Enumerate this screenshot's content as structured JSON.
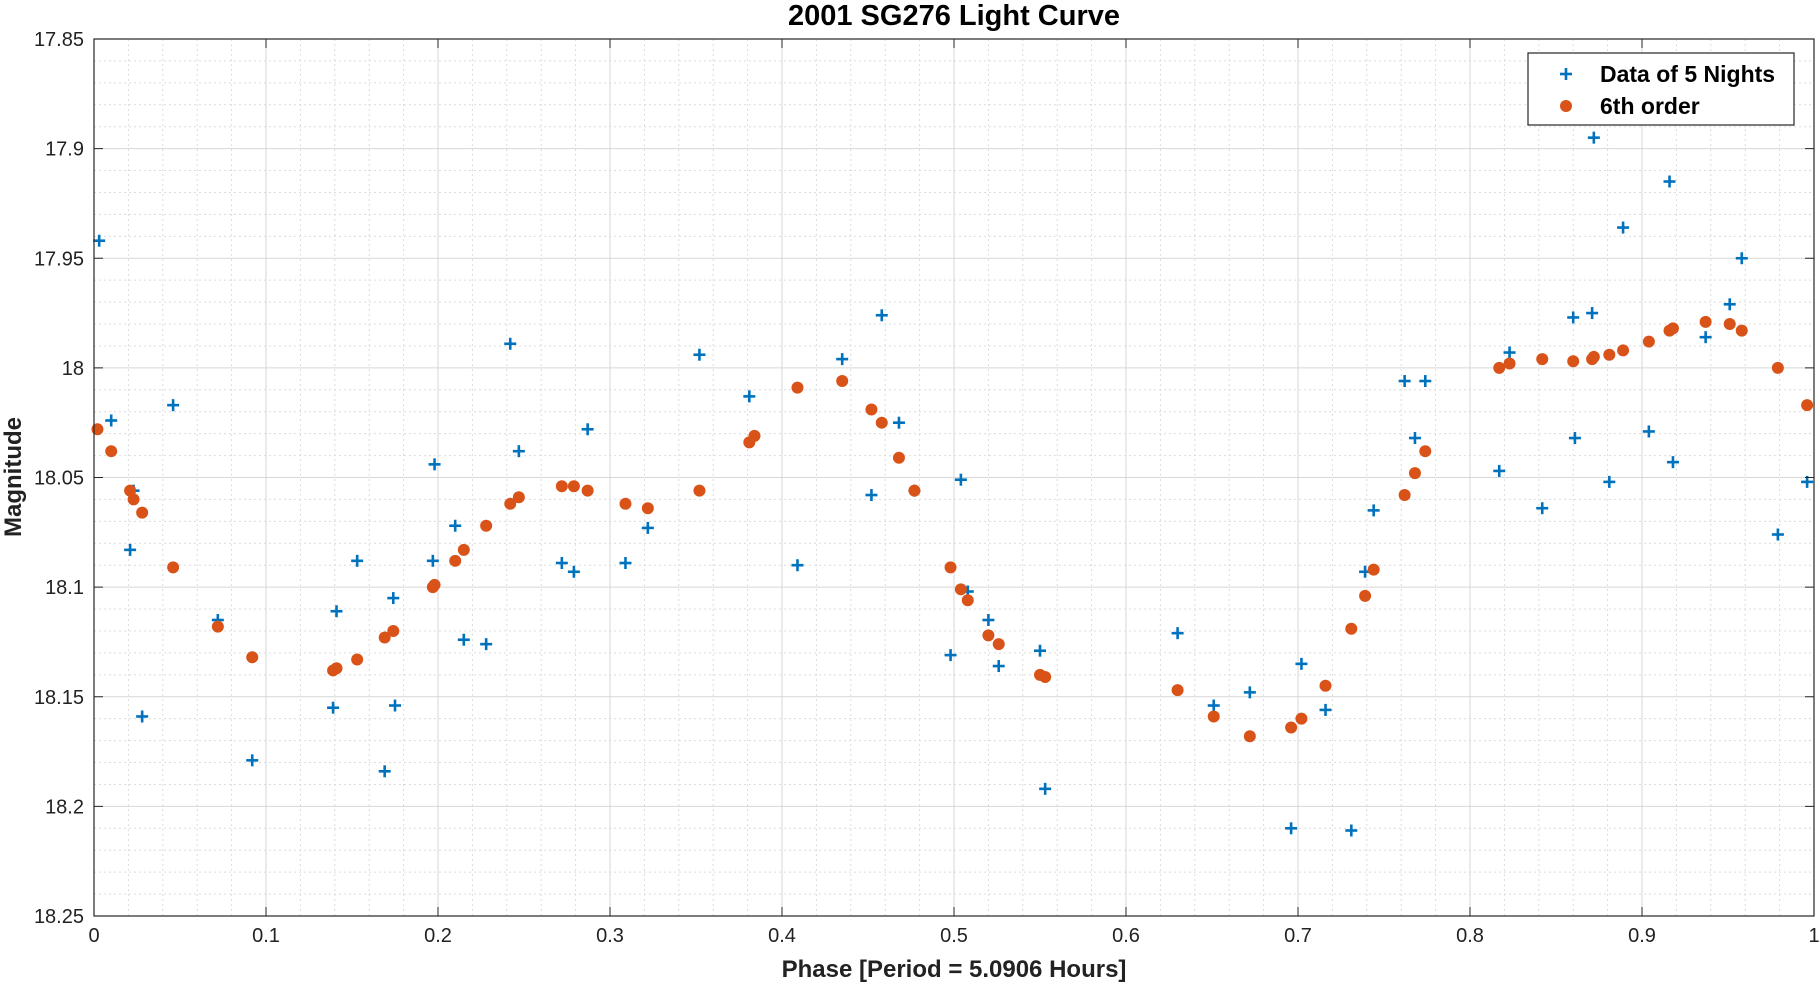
{
  "chart_data": {
    "type": "scatter",
    "title": "2001 SG276 Light Curve",
    "xlabel": "Phase [Period = 5.0906 Hours]",
    "ylabel": "Magnitude",
    "xlim": [
      0,
      1
    ],
    "ylim": [
      17.85,
      18.25
    ],
    "y_reversed": true,
    "xticks": [
      "0",
      "0.1",
      "0.2",
      "0.3",
      "0.4",
      "0.5",
      "0.6",
      "0.7",
      "0.8",
      "0.9",
      "1"
    ],
    "yticks": [
      "17.85",
      "17.9",
      "17.95",
      "18",
      "18.05",
      "18.1",
      "18.15",
      "18.2",
      "18.25"
    ],
    "grid": true,
    "minor_grid": true,
    "legend_position": "top-right",
    "series": [
      {
        "name": "Data of 5 Nights",
        "marker": "plus",
        "color": "#0072BD",
        "points": [
          [
            0.003,
            17.942
          ],
          [
            0.01,
            18.024
          ],
          [
            0.021,
            18.083
          ],
          [
            0.023,
            18.056
          ],
          [
            0.028,
            18.159
          ],
          [
            0.046,
            18.017
          ],
          [
            0.072,
            18.115
          ],
          [
            0.092,
            18.179
          ],
          [
            0.139,
            18.155
          ],
          [
            0.141,
            18.111
          ],
          [
            0.153,
            18.088
          ],
          [
            0.169,
            18.184
          ],
          [
            0.174,
            18.105
          ],
          [
            0.175,
            18.154
          ],
          [
            0.197,
            18.088
          ],
          [
            0.198,
            18.044
          ],
          [
            0.21,
            18.072
          ],
          [
            0.215,
            18.124
          ],
          [
            0.228,
            18.126
          ],
          [
            0.242,
            17.989
          ],
          [
            0.247,
            18.038
          ],
          [
            0.272,
            18.089
          ],
          [
            0.279,
            18.093
          ],
          [
            0.287,
            18.028
          ],
          [
            0.309,
            18.089
          ],
          [
            0.322,
            18.073
          ],
          [
            0.352,
            17.994
          ],
          [
            0.381,
            18.013
          ],
          [
            0.409,
            18.09
          ],
          [
            0.435,
            17.996
          ],
          [
            0.452,
            18.058
          ],
          [
            0.458,
            17.976
          ],
          [
            0.468,
            18.025
          ],
          [
            0.477,
            18.056
          ],
          [
            0.498,
            18.131
          ],
          [
            0.504,
            18.051
          ],
          [
            0.508,
            18.102
          ],
          [
            0.52,
            18.115
          ],
          [
            0.526,
            18.136
          ],
          [
            0.55,
            18.129
          ],
          [
            0.553,
            18.192
          ],
          [
            0.63,
            18.121
          ],
          [
            0.651,
            18.154
          ],
          [
            0.672,
            18.148
          ],
          [
            0.696,
            18.21
          ],
          [
            0.702,
            18.135
          ],
          [
            0.716,
            18.156
          ],
          [
            0.731,
            18.211
          ],
          [
            0.739,
            18.093
          ],
          [
            0.744,
            18.065
          ],
          [
            0.762,
            18.006
          ],
          [
            0.768,
            18.032
          ],
          [
            0.774,
            18.006
          ],
          [
            0.817,
            18.047
          ],
          [
            0.823,
            17.993
          ],
          [
            0.842,
            18.064
          ],
          [
            0.86,
            17.977
          ],
          [
            0.861,
            18.032
          ],
          [
            0.871,
            17.975
          ],
          [
            0.872,
            17.895
          ],
          [
            0.881,
            18.052
          ],
          [
            0.889,
            17.936
          ],
          [
            0.904,
            18.029
          ],
          [
            0.916,
            17.915
          ],
          [
            0.918,
            18.043
          ],
          [
            0.937,
            17.986
          ],
          [
            0.951,
            17.971
          ],
          [
            0.958,
            17.95
          ],
          [
            0.979,
            18.076
          ],
          [
            0.996,
            18.052
          ]
        ]
      },
      {
        "name": "6th order",
        "marker": "circle",
        "color": "#D95319",
        "points": [
          [
            0.002,
            18.028
          ],
          [
            0.01,
            18.038
          ],
          [
            0.021,
            18.056
          ],
          [
            0.023,
            18.06
          ],
          [
            0.028,
            18.066
          ],
          [
            0.046,
            18.091
          ],
          [
            0.072,
            18.118
          ],
          [
            0.092,
            18.132
          ],
          [
            0.139,
            18.138
          ],
          [
            0.141,
            18.137
          ],
          [
            0.153,
            18.133
          ],
          [
            0.169,
            18.123
          ],
          [
            0.174,
            18.12
          ],
          [
            0.197,
            18.1
          ],
          [
            0.198,
            18.099
          ],
          [
            0.21,
            18.088
          ],
          [
            0.215,
            18.083
          ],
          [
            0.228,
            18.072
          ],
          [
            0.242,
            18.062
          ],
          [
            0.247,
            18.059
          ],
          [
            0.272,
            18.054
          ],
          [
            0.279,
            18.054
          ],
          [
            0.287,
            18.056
          ],
          [
            0.309,
            18.062
          ],
          [
            0.322,
            18.064
          ],
          [
            0.352,
            18.056
          ],
          [
            0.381,
            18.034
          ],
          [
            0.384,
            18.031
          ],
          [
            0.409,
            18.009
          ],
          [
            0.435,
            18.006
          ],
          [
            0.452,
            18.019
          ],
          [
            0.458,
            18.025
          ],
          [
            0.468,
            18.041
          ],
          [
            0.477,
            18.056
          ],
          [
            0.498,
            18.091
          ],
          [
            0.504,
            18.101
          ],
          [
            0.508,
            18.106
          ],
          [
            0.52,
            18.122
          ],
          [
            0.526,
            18.126
          ],
          [
            0.55,
            18.14
          ],
          [
            0.553,
            18.141
          ],
          [
            0.63,
            18.147
          ],
          [
            0.651,
            18.159
          ],
          [
            0.672,
            18.168
          ],
          [
            0.696,
            18.164
          ],
          [
            0.702,
            18.16
          ],
          [
            0.716,
            18.145
          ],
          [
            0.731,
            18.119
          ],
          [
            0.739,
            18.104
          ],
          [
            0.744,
            18.092
          ],
          [
            0.762,
            18.058
          ],
          [
            0.768,
            18.048
          ],
          [
            0.774,
            18.038
          ],
          [
            0.817,
            18.0
          ],
          [
            0.823,
            17.998
          ],
          [
            0.842,
            17.996
          ],
          [
            0.86,
            17.997
          ],
          [
            0.871,
            17.996
          ],
          [
            0.872,
            17.995
          ],
          [
            0.881,
            17.994
          ],
          [
            0.889,
            17.992
          ],
          [
            0.904,
            17.988
          ],
          [
            0.916,
            17.983
          ],
          [
            0.918,
            17.982
          ],
          [
            0.937,
            17.979
          ],
          [
            0.951,
            17.98
          ],
          [
            0.958,
            17.983
          ],
          [
            0.979,
            18.0
          ],
          [
            0.996,
            18.017
          ]
        ]
      }
    ]
  }
}
